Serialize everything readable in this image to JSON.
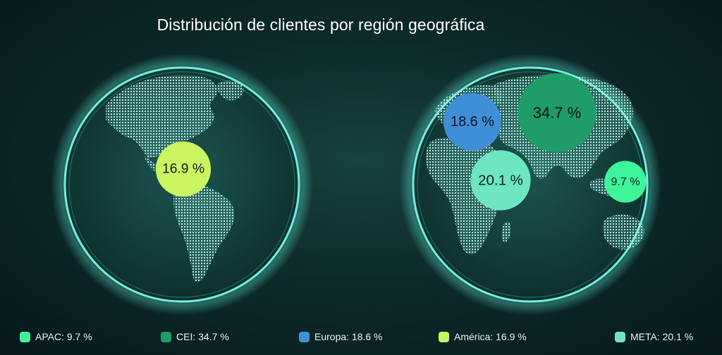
{
  "chart_data": {
    "type": "bubble-map",
    "title": "Distribución de clientes por región geográfica",
    "regions": [
      {
        "name": "APAC",
        "value": 9.7,
        "label": "9.7 %",
        "legend": "APAC: 9.7 %",
        "color": "#3ef59b",
        "text_color": "#0b1f1f"
      },
      {
        "name": "CEI",
        "value": 34.7,
        "label": "34.7 %",
        "legend": "CEI: 34.7 %",
        "color": "#1f9c68",
        "text_color": "#07140f"
      },
      {
        "name": "Europa",
        "value": 18.6,
        "label": "18.6 %",
        "legend": "Europa: 18.6 %",
        "color": "#3f8fd6",
        "text_color": "#07121f"
      },
      {
        "name": "América",
        "value": 16.9,
        "label": "16.9 %",
        "legend": "América: 16.9 %",
        "color": "#caf561",
        "text_color": "#0b1f1f"
      },
      {
        "name": "META",
        "value": 20.1,
        "label": "20.1 %",
        "legend": "META: 20.1 %",
        "color": "#6de6c1",
        "text_color": "#0b1f1f"
      }
    ]
  },
  "legend_order": [
    "APAC",
    "CEI",
    "Europa",
    "América",
    "META"
  ]
}
